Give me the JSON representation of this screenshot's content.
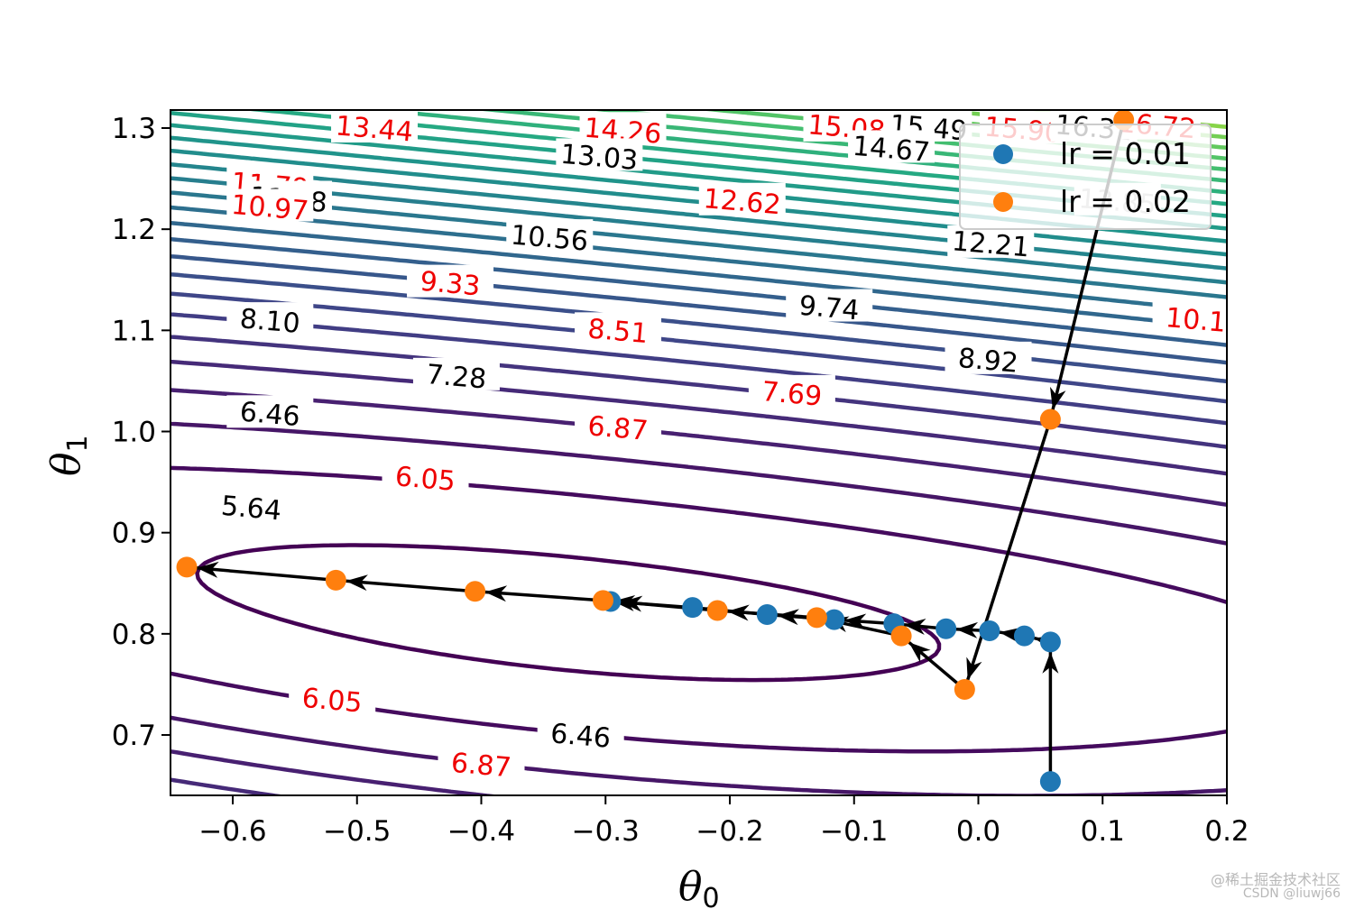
{
  "chart_data": {
    "type": "contour",
    "title": "",
    "xlabel": "θ",
    "xlabel_sub": "0",
    "ylabel": "θ",
    "ylabel_sub": "1",
    "xlim": [
      -0.65,
      0.2
    ],
    "ylim": [
      0.64,
      1.318
    ],
    "xticks": [
      -0.6,
      -0.5,
      -0.4,
      -0.3,
      -0.2,
      -0.1,
      0.0,
      0.1,
      0.2
    ],
    "xtick_labels": [
      "−0.6",
      "−0.5",
      "−0.4",
      "−0.3",
      "−0.2",
      "−0.1",
      "0.0",
      "0.1",
      "0.2"
    ],
    "yticks": [
      0.7,
      0.8,
      0.9,
      1.0,
      1.1,
      1.2,
      1.3
    ],
    "ytick_labels": [
      "0.7",
      "0.8",
      "0.9",
      "1.0",
      "1.1",
      "1.2",
      "1.3"
    ],
    "grid": false,
    "colormap": "viridis",
    "contour_levels": [
      5.64,
      6.05,
      6.46,
      6.87,
      7.28,
      7.69,
      8.1,
      8.51,
      8.92,
      9.33,
      9.74,
      10.15,
      10.56,
      10.97,
      11.38,
      11.79,
      12.21,
      12.62,
      13.03,
      13.44,
      13.85,
      14.26,
      14.67,
      15.08,
      15.49,
      15.9,
      16.31,
      16.72
    ],
    "contour_labels": [
      {
        "text": "13.44",
        "color": "red",
        "x": -0.486,
        "y": 1.3
      },
      {
        "text": "14.26",
        "color": "red",
        "x": -0.286,
        "y": 1.298
      },
      {
        "text": "15.08",
        "color": "red",
        "x": -0.106,
        "y": 1.301
      },
      {
        "text": "15.49",
        "color": "black",
        "x": -0.04,
        "y": 1.301
      },
      {
        "text": "15.90",
        "color": "red",
        "x": 0.036,
        "y": 1.299
      },
      {
        "text": "16.31",
        "color": "black",
        "x": 0.093,
        "y": 1.301
      },
      {
        "text": "16.72",
        "color": "red",
        "x": 0.144,
        "y": 1.303
      },
      {
        "text": "13.03",
        "color": "black",
        "x": -0.305,
        "y": 1.272
      },
      {
        "text": "14.67",
        "color": "black",
        "x": -0.07,
        "y": 1.28
      },
      {
        "text": "11.79",
        "color": "red",
        "x": -0.57,
        "y": 1.244
      },
      {
        "text": "11.38",
        "color": "black",
        "x": -0.555,
        "y": 1.23
      },
      {
        "text": "10.97",
        "color": "red",
        "x": -0.57,
        "y": 1.222
      },
      {
        "text": "12.62",
        "color": "red",
        "x": -0.19,
        "y": 1.228
      },
      {
        "text": "13.85",
        "color": "gray",
        "x": 0.112,
        "y": 1.228
      },
      {
        "text": "12.21",
        "color": "black",
        "x": 0.01,
        "y": 1.186
      },
      {
        "text": "10.56",
        "color": "black",
        "x": -0.345,
        "y": 1.192
      },
      {
        "text": "9.33",
        "color": "red",
        "x": -0.425,
        "y": 1.147
      },
      {
        "text": "9.74",
        "color": "black",
        "x": -0.12,
        "y": 1.123
      },
      {
        "text": "10.1",
        "color": "red",
        "x": 0.175,
        "y": 1.111
      },
      {
        "text": "8.10",
        "color": "black",
        "x": -0.57,
        "y": 1.11
      },
      {
        "text": "8.51",
        "color": "red",
        "x": -0.29,
        "y": 1.1
      },
      {
        "text": "8.92",
        "color": "black",
        "x": 0.008,
        "y": 1.071
      },
      {
        "text": "7.28",
        "color": "black",
        "x": -0.42,
        "y": 1.055
      },
      {
        "text": "7.69",
        "color": "red",
        "x": -0.15,
        "y": 1.038
      },
      {
        "text": "6.46",
        "color": "black",
        "x": -0.57,
        "y": 1.018
      },
      {
        "text": "6.87",
        "color": "red",
        "x": -0.29,
        "y": 1.004
      },
      {
        "text": "6.05",
        "color": "red",
        "x": -0.445,
        "y": 0.954
      },
      {
        "text": "5.64",
        "color": "black",
        "x": -0.585,
        "y": 0.925
      },
      {
        "text": "6.05",
        "color": "red",
        "x": -0.52,
        "y": 0.735
      },
      {
        "text": "6.46",
        "color": "black",
        "x": -0.32,
        "y": 0.7
      },
      {
        "text": "6.87",
        "color": "red",
        "x": -0.4,
        "y": 0.671
      }
    ],
    "series": [
      {
        "name": "lr = 0.01",
        "color": "#1f77b4",
        "x": [
          0.058,
          0.058,
          0.037,
          0.009,
          -0.026,
          -0.068,
          -0.116,
          -0.17,
          -0.23,
          -0.296
        ],
        "y": [
          0.654,
          0.792,
          0.798,
          0.803,
          0.805,
          0.81,
          0.814,
          0.819,
          0.826,
          0.832
        ]
      },
      {
        "name": "lr = 0.02",
        "color": "#ff7f0e",
        "x": [
          0.117,
          0.058,
          -0.011,
          -0.062,
          -0.13,
          -0.21,
          -0.302,
          -0.405,
          -0.517,
          -0.637
        ],
        "y": [
          1.308,
          1.012,
          0.745,
          0.798,
          0.816,
          0.823,
          0.833,
          0.842,
          0.853,
          0.866
        ]
      }
    ],
    "legend": {
      "placement": "top-right",
      "entries": [
        {
          "label": "lr = 0.01",
          "color": "#1f77b4"
        },
        {
          "label": "lr = 0.02",
          "color": "#ff7f0e"
        }
      ]
    }
  },
  "watermark": {
    "line1": "@稀土掘金技术社区",
    "line2": "CSDN @liuwj66"
  }
}
